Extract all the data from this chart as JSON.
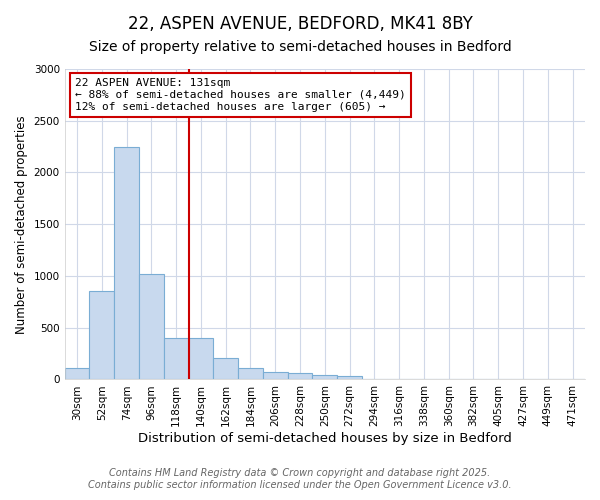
{
  "title": "22, ASPEN AVENUE, BEDFORD, MK41 8BY",
  "subtitle": "Size of property relative to semi-detached houses in Bedford",
  "xlabel": "Distribution of semi-detached houses by size in Bedford",
  "ylabel": "Number of semi-detached properties",
  "categories": [
    "30sqm",
    "52sqm",
    "74sqm",
    "96sqm",
    "118sqm",
    "140sqm",
    "162sqm",
    "184sqm",
    "206sqm",
    "228sqm",
    "250sqm",
    "272sqm",
    "294sqm",
    "316sqm",
    "338sqm",
    "360sqm",
    "382sqm",
    "405sqm",
    "427sqm",
    "449sqm",
    "471sqm"
  ],
  "values": [
    110,
    850,
    2250,
    1020,
    400,
    400,
    210,
    110,
    75,
    60,
    40,
    30,
    5,
    5,
    5,
    5,
    5,
    5,
    5,
    5,
    5
  ],
  "bar_color": "#c8d9ee",
  "bar_edgecolor": "#7aadd4",
  "vline_x": 5,
  "vline_color": "#cc0000",
  "annotation_text": "22 ASPEN AVENUE: 131sqm\n← 88% of semi-detached houses are smaller (4,449)\n12% of semi-detached houses are larger (605) →",
  "annotation_box_color": "#cc0000",
  "ylim": [
    0,
    3000
  ],
  "yticks": [
    0,
    500,
    1000,
    1500,
    2000,
    2500,
    3000
  ],
  "background_color": "#ffffff",
  "plot_background": "#ffffff",
  "grid_color": "#d0d8e8",
  "footer1": "Contains HM Land Registry data © Crown copyright and database right 2025.",
  "footer2": "Contains public sector information licensed under the Open Government Licence v3.0.",
  "title_fontsize": 12,
  "subtitle_fontsize": 10,
  "xlabel_fontsize": 9.5,
  "ylabel_fontsize": 8.5,
  "tick_fontsize": 7.5,
  "footer_fontsize": 7,
  "ann_fontsize": 8
}
